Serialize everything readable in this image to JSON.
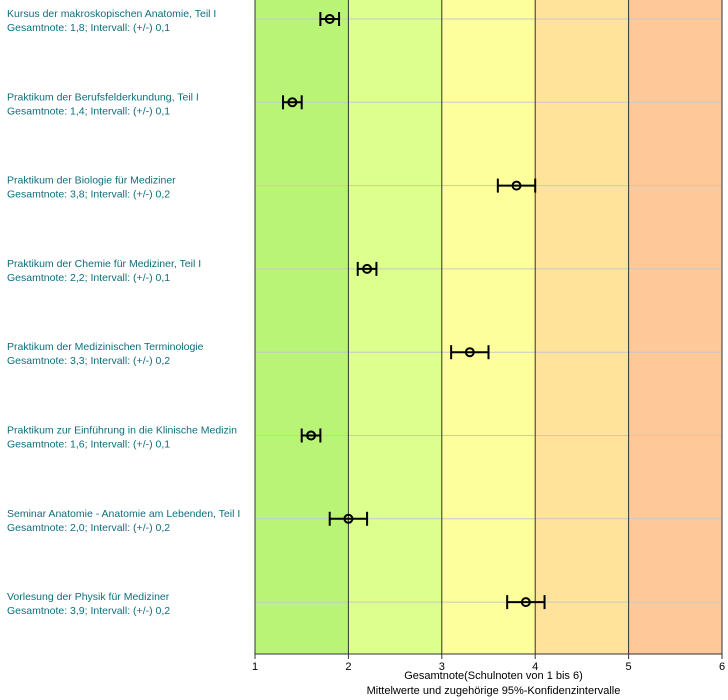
{
  "chart_data": {
    "type": "errorbar",
    "x_range": [
      1,
      6
    ],
    "x_ticks": [
      "1",
      "2",
      "3",
      "4",
      "5",
      "6"
    ],
    "xlabel_line1": "Gesamtnote(Schulnoten von 1 bis 6)",
    "xlabel_line2": "Mittelwerte und zugehörige 95%-Konfidenzintervalle",
    "bands": [
      {
        "from": 1,
        "to": 2,
        "color": "#b9f477"
      },
      {
        "from": 2,
        "to": 3,
        "color": "#dcff8e"
      },
      {
        "from": 3,
        "to": 4,
        "color": "#fcff9c"
      },
      {
        "from": 4,
        "to": 5,
        "color": "#ffe39b"
      },
      {
        "from": 5,
        "to": 6,
        "color": "#ffc898"
      }
    ],
    "items": [
      {
        "title": "Kursus der makroskopischen Anatomie, Teil I",
        "summary": "Gesamtnote: 1,8;  Intervall: (+/-) 0,1",
        "mean": 1.8,
        "ci": 0.1
      },
      {
        "title": "Praktikum der Berufsfelderkundung, Teil I",
        "summary": "Gesamtnote: 1,4;  Intervall: (+/-) 0,1",
        "mean": 1.4,
        "ci": 0.1
      },
      {
        "title": "Praktikum der Biologie für Mediziner",
        "summary": "Gesamtnote: 3,8;  Intervall: (+/-) 0,2",
        "mean": 3.8,
        "ci": 0.2
      },
      {
        "title": "Praktikum der Chemie für Mediziner, Teil I",
        "summary": "Gesamtnote: 2,2;  Intervall: (+/-) 0,1",
        "mean": 2.2,
        "ci": 0.1
      },
      {
        "title": "Praktikum der Medizinischen Terminologie",
        "summary": "Gesamtnote: 3,3;  Intervall: (+/-) 0,2",
        "mean": 3.3,
        "ci": 0.2
      },
      {
        "title": "Praktikum zur Einführung in die Klinische Medizin",
        "summary": "Gesamtnote: 1,6;  Intervall: (+/-) 0,1",
        "mean": 1.6,
        "ci": 0.1
      },
      {
        "title": "Seminar Anatomie - Anatomie am Lebenden, Teil I",
        "summary": "Gesamtnote: 2,0;  Intervall: (+/-) 0,2",
        "mean": 2.0,
        "ci": 0.2
      },
      {
        "title": "Vorlesung der Physik für Mediziner",
        "summary": "Gesamtnote: 3,9;  Intervall: (+/-) 0,2",
        "mean": 3.9,
        "ci": 0.2
      }
    ]
  }
}
